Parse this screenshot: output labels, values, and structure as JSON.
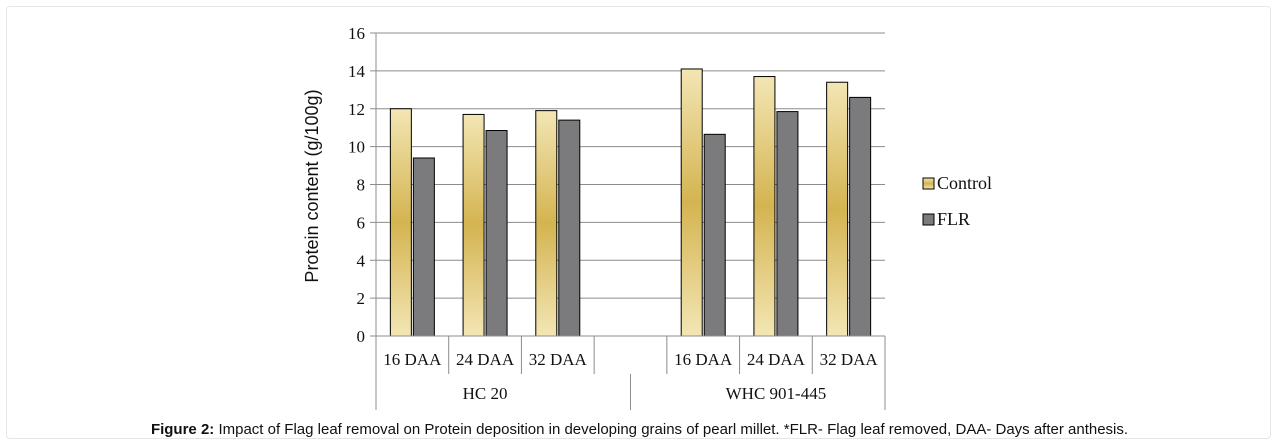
{
  "chart_data": {
    "type": "bar",
    "groups": [
      {
        "name": "HC 20",
        "categories": [
          "16 DAA",
          "24 DAA",
          "32 DAA"
        ]
      },
      {
        "name": "WHC 901-445",
        "categories": [
          "16 DAA",
          "24 DAA",
          "32 DAA"
        ]
      }
    ],
    "series": [
      {
        "name": "Control",
        "values": [
          12.0,
          11.7,
          11.9,
          14.1,
          13.7,
          13.4
        ],
        "color": "#d8bd5a"
      },
      {
        "name": "FLR",
        "values": [
          9.4,
          10.85,
          11.4,
          10.65,
          11.85,
          12.6
        ],
        "color": "#7b7b7e"
      }
    ],
    "ylabel": "Protein content (g/100g)",
    "ylim": [
      0,
      16
    ],
    "yticks": [
      0,
      2,
      4,
      6,
      8,
      10,
      12,
      14,
      16
    ],
    "grid": true,
    "legend": "right"
  },
  "caption": {
    "label": "Figure 2:",
    "text": " Impact of Flag leaf removal on Protein deposition in developing grains of pearl millet. *FLR- Flag leaf removed, DAA- Days after anthesis."
  }
}
